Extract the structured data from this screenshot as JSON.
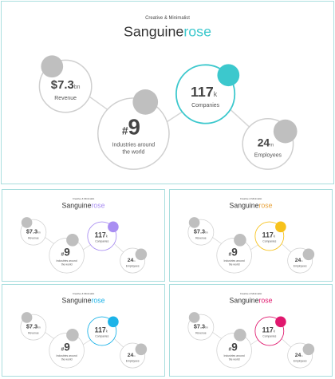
{
  "theme": {
    "neutral": "#bfbfbf",
    "ring": "#cfcfcf",
    "line": "#d6d6d6"
  },
  "slides": [
    {
      "subtitle": "Creative & Minimalist",
      "title_main": "Sanguine",
      "title_accent": "rose",
      "accent": "#3cc8cd",
      "title_accent_color": "#3cc8cd",
      "revenue": {
        "value": "$7.3",
        "unit": "bn",
        "label": "Revenue"
      },
      "industries": {
        "prefix": "#",
        "value": "9",
        "label_line1": "Industries around",
        "label_line2": "the world"
      },
      "companies": {
        "value": "117",
        "unit": "k",
        "label": "Companies"
      },
      "employees": {
        "value": "24",
        "unit": "m",
        "label": "Employees"
      }
    },
    {
      "subtitle": "Creative & Minimalist",
      "title_main": "Sanguine",
      "title_accent": "rose",
      "accent": "#a98ef2",
      "title_accent_color": "#a98ef2",
      "revenue": {
        "value": "$7.3",
        "unit": "bn",
        "label": "Revenue"
      },
      "industries": {
        "prefix": "#",
        "value": "9",
        "label_line1": "Industries around",
        "label_line2": "the world"
      },
      "companies": {
        "value": "117",
        "unit": "k",
        "label": "Companies"
      },
      "employees": {
        "value": "24",
        "unit": "m",
        "label": "Employees"
      }
    },
    {
      "subtitle": "Creative & Minimalist",
      "title_main": "Sanguine",
      "title_accent": "rose",
      "accent": "#f7c21b",
      "title_accent_color": "#e8a33c",
      "revenue": {
        "value": "$7.3",
        "unit": "bn",
        "label": "Revenue"
      },
      "industries": {
        "prefix": "#",
        "value": "9",
        "label_line1": "Industries around",
        "label_line2": "the world"
      },
      "companies": {
        "value": "117",
        "unit": "k",
        "label": "Companies"
      },
      "employees": {
        "value": "24",
        "unit": "m",
        "label": "Employees"
      }
    },
    {
      "subtitle": "Creative & Minimalist",
      "title_main": "Sanguine",
      "title_accent": "rose",
      "accent": "#1cb3e8",
      "title_accent_color": "#1cb3e8",
      "revenue": {
        "value": "$7.3",
        "unit": "bn",
        "label": "Revenue"
      },
      "industries": {
        "prefix": "#",
        "value": "9",
        "label_line1": "Industries around",
        "label_line2": "the world"
      },
      "companies": {
        "value": "117",
        "unit": "k",
        "label": "Companies"
      },
      "employees": {
        "value": "24",
        "unit": "m",
        "label": "Employees"
      }
    },
    {
      "subtitle": "Creative & Minimalist",
      "title_main": "Sanguine",
      "title_accent": "rose",
      "accent": "#e0186e",
      "title_accent_color": "#e0186e",
      "revenue": {
        "value": "$7.3",
        "unit": "bn",
        "label": "Revenue"
      },
      "industries": {
        "prefix": "#",
        "value": "9",
        "label_line1": "Industries around",
        "label_line2": "the world"
      },
      "companies": {
        "value": "117",
        "unit": "k",
        "label": "Companies"
      },
      "employees": {
        "value": "24",
        "unit": "m",
        "label": "Employees"
      }
    }
  ]
}
